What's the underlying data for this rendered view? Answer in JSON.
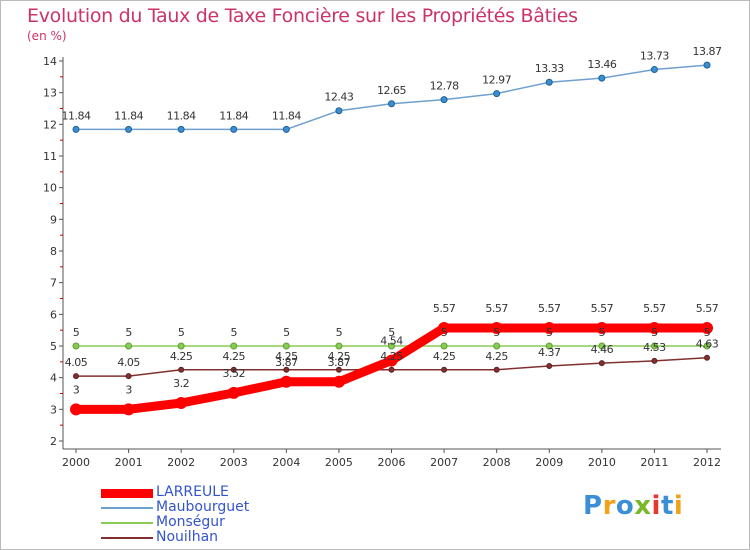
{
  "header": {
    "title": "Evolution du Taux de Taxe Foncière sur les Propriétés Bâties",
    "unit": "(en %)"
  },
  "logo": {
    "text": "Proxiti",
    "colors": [
      "#3b8fd6",
      "#f0a21a",
      "#3b8fd6",
      "#79b829",
      "#e8372e",
      "#3b8fd6",
      "#f0a21a"
    ]
  },
  "chart_data": {
    "type": "line",
    "x": [
      "2000",
      "2001",
      "2002",
      "2003",
      "2004",
      "2005",
      "2006",
      "2007",
      "2008",
      "2009",
      "2010",
      "2011",
      "2012"
    ],
    "ylim": [
      2,
      14
    ],
    "yticks": [
      2,
      3,
      4,
      5,
      6,
      7,
      8,
      9,
      10,
      11,
      12,
      13,
      14
    ],
    "grid": false,
    "legend_position": "bottom-left",
    "series": [
      {
        "name": "Maubourguet",
        "color": "#6fa0d0",
        "values": [
          11.84,
          11.84,
          11.84,
          11.84,
          11.84,
          12.43,
          12.65,
          12.78,
          12.97,
          13.33,
          13.46,
          13.73,
          13.87
        ],
        "labels": [
          "11.84",
          "11.84",
          "11.84",
          "11.84",
          "11.84",
          "12.43",
          "12.65",
          "12.78",
          "12.97",
          "13.33",
          "13.46",
          "13.73",
          "13.87"
        ]
      },
      {
        "name": "Monségur",
        "color": "#88cc55",
        "values": [
          5,
          5,
          5,
          5,
          5,
          5,
          5,
          5,
          5,
          5,
          5,
          5,
          5
        ],
        "labels": [
          "5",
          "5",
          "5",
          "5",
          "5",
          "5",
          "5",
          "5",
          "5",
          "5",
          "5",
          "5",
          "5"
        ]
      },
      {
        "name": "Nouilhan",
        "color": "#803030",
        "values": [
          4.05,
          4.05,
          4.25,
          4.25,
          4.25,
          4.25,
          4.25,
          4.25,
          4.25,
          4.37,
          4.46,
          4.53,
          4.63
        ],
        "labels": [
          "4.05",
          "4.05",
          "4.25",
          "4.25",
          "4.25",
          "4.25",
          "4.25",
          "4.25",
          "4.25",
          "4.37",
          "4.46",
          "4.53",
          "4.63"
        ]
      },
      {
        "name": "LARREULE",
        "color": "#ff0000",
        "values": [
          3,
          3,
          3.2,
          3.52,
          3.87,
          3.87,
          4.54,
          5.57,
          5.57,
          5.57,
          5.57,
          5.57,
          5.57
        ],
        "labels": [
          "3",
          "3",
          "3.2",
          "3.52",
          "3.87",
          "3.87",
          "4.54",
          "5.57",
          "5.57",
          "5.57",
          "5.57",
          "5.57",
          "5.57"
        ]
      }
    ],
    "legend": [
      "LARREULE",
      "Maubourguet",
      "Monségur",
      "Nouilhan"
    ]
  }
}
